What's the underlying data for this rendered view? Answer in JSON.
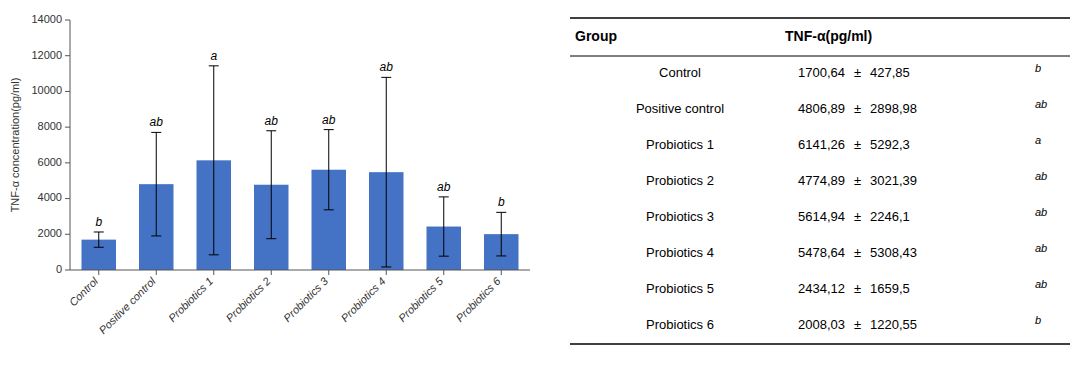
{
  "chart_data": [
    {
      "type": "bar",
      "categories": [
        "Control",
        "Positive control",
        "Probiotics 1",
        "Probiotics 2",
        "Probiotics 3",
        "Probiotics 4",
        "Probiotics 5",
        "Probiotics 6"
      ],
      "values": [
        1700.64,
        4806.89,
        6141.26,
        4774.89,
        5614.94,
        5478.64,
        2434.12,
        2008.03
      ],
      "errors": [
        427.85,
        2898.98,
        5292.3,
        3021.39,
        2246.1,
        5308.43,
        1659.5,
        1220.55
      ],
      "annotations": [
        "b",
        "ab",
        "a",
        "ab",
        "ab",
        "ab",
        "ab",
        "b"
      ],
      "color": "#4472C4",
      "ylabel": "TNF-α concentration(pg/ml)",
      "ylim": [
        0,
        14000
      ],
      "yticks": [
        0,
        2000,
        4000,
        6000,
        8000,
        10000,
        12000,
        14000
      ]
    },
    {
      "type": "table",
      "columns": [
        "Group",
        "TNF-α(pg/ml)"
      ],
      "rows": [
        [
          "Control",
          "1700,64",
          "±",
          "427,85",
          "b"
        ],
        [
          "Positive control",
          "4806,89",
          "±",
          "2898,98",
          "ab"
        ],
        [
          "Probiotics 1",
          "6141,26",
          "±",
          "5292,3",
          "a"
        ],
        [
          "Probiotics 2",
          "4774,89",
          "±",
          "3021,39",
          "ab"
        ],
        [
          "Probiotics 3",
          "5614,94",
          "±",
          "2246,1",
          "ab"
        ],
        [
          "Probiotics 4",
          "5478,64",
          "±",
          "5308,43",
          "ab"
        ],
        [
          "Probiotics 5",
          "2434,12",
          "±",
          "1659,5",
          "ab"
        ],
        [
          "Probiotics 6",
          "2008,03",
          "±",
          "1220,55",
          "b"
        ]
      ]
    }
  ]
}
